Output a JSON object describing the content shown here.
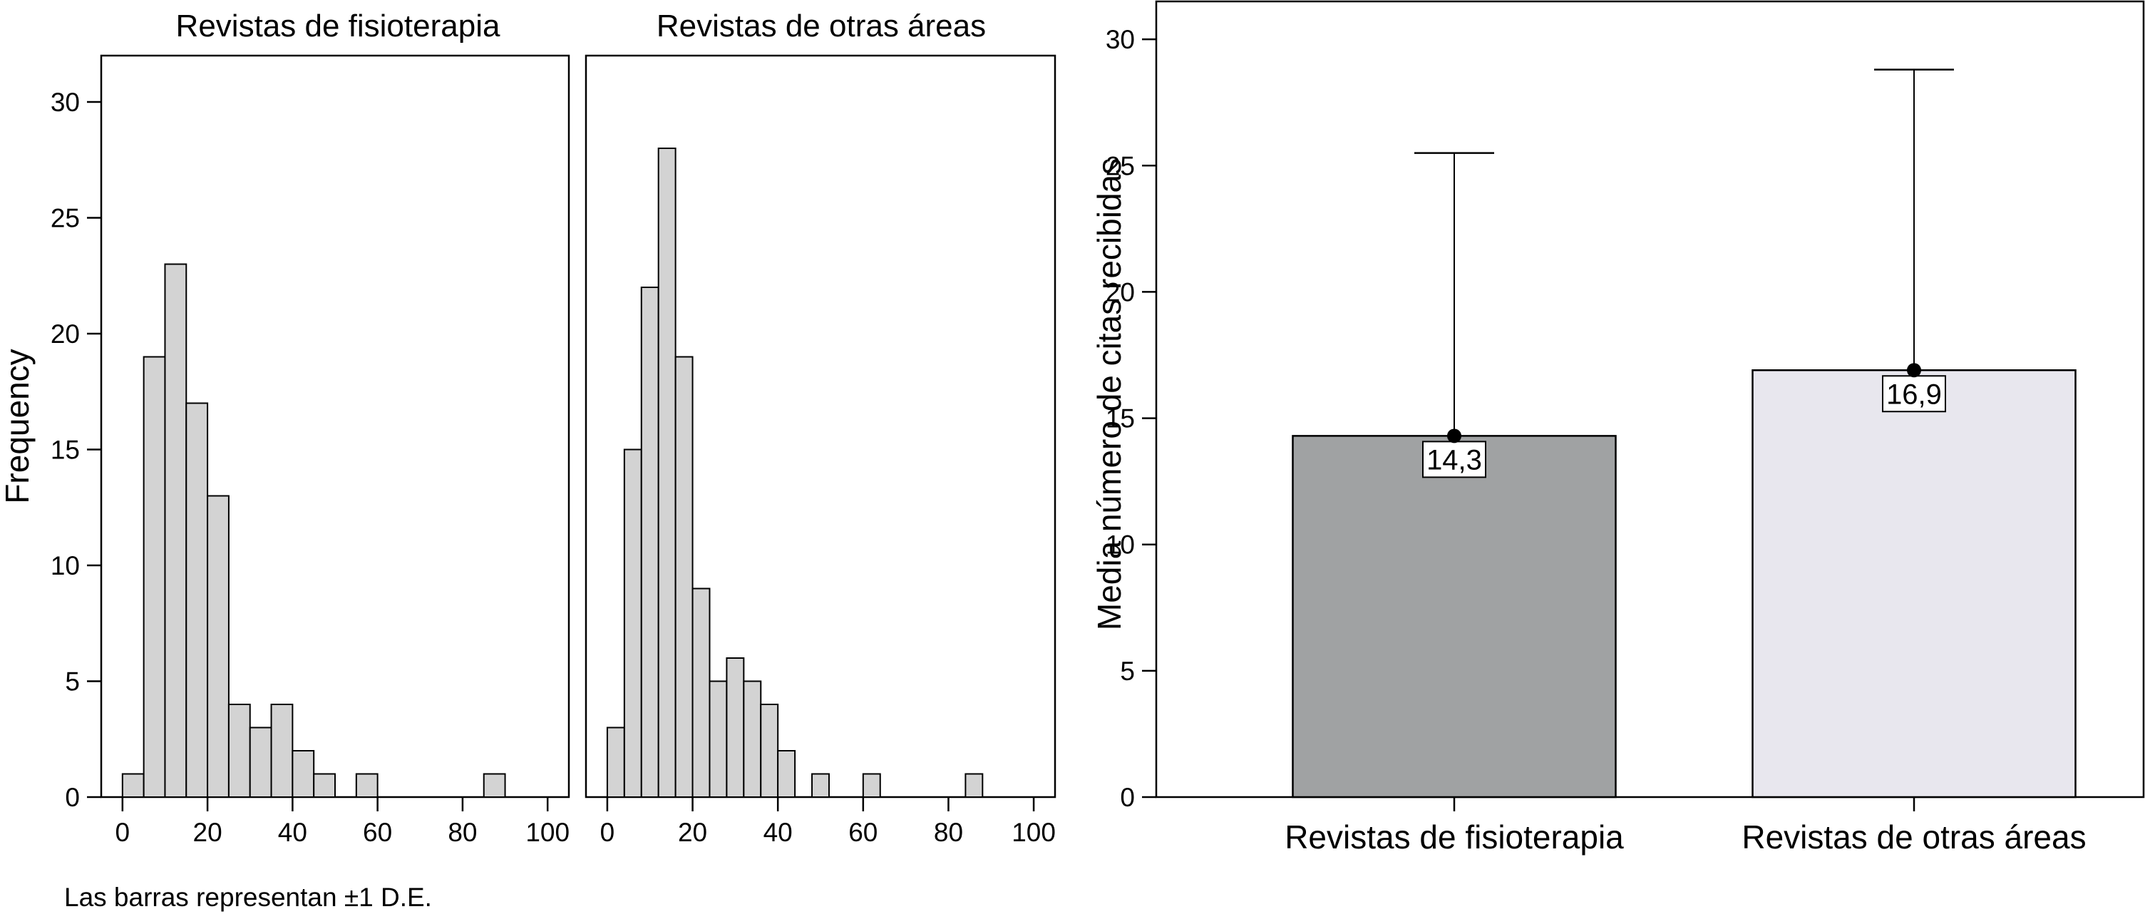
{
  "colors": {
    "hist_fill": "#d3d3d3",
    "bar_physio": "#a0a2a3",
    "bar_other": "#e8e7ee",
    "ink": "#000000"
  },
  "footnote": "Las barras representan ±1 D.E.",
  "chart_data": [
    {
      "type": "bar",
      "subtype": "histogram",
      "title": "Revistas de fisioterapia",
      "ylabel": "Frequency",
      "xlabel": "",
      "bin_width": 5,
      "bin_starts": [
        0,
        5,
        10,
        15,
        20,
        25,
        30,
        35,
        40,
        45,
        50,
        55,
        60,
        65,
        70,
        75,
        80,
        85
      ],
      "values": [
        1,
        19,
        23,
        17,
        13,
        4,
        3,
        4,
        2,
        1,
        0,
        1,
        0,
        0,
        0,
        0,
        0,
        1
      ],
      "xlim": [
        -5,
        105
      ],
      "ylim": [
        0,
        32
      ],
      "xticks": [
        0,
        20,
        40,
        60,
        80,
        100
      ],
      "yticks": [
        0,
        5,
        10,
        15,
        20,
        25,
        30
      ],
      "grid": false
    },
    {
      "type": "bar",
      "subtype": "histogram",
      "title": "Revistas de otras áreas",
      "xlabel": "",
      "bin_width": 4,
      "bin_starts": [
        0,
        4,
        8,
        12,
        16,
        20,
        24,
        28,
        32,
        36,
        40,
        44,
        48,
        52,
        56,
        60,
        64,
        68,
        72,
        76,
        80,
        84
      ],
      "values": [
        3,
        15,
        22,
        28,
        19,
        9,
        5,
        6,
        5,
        4,
        2,
        0,
        1,
        0,
        0,
        1,
        0,
        0,
        0,
        0,
        0,
        1
      ],
      "xlim": [
        -5,
        105
      ],
      "ylim": [
        0,
        32
      ],
      "xticks": [
        0,
        20,
        40,
        60,
        80,
        100
      ],
      "yticks": [
        0,
        5,
        10,
        15,
        20,
        25,
        30
      ],
      "grid": false
    },
    {
      "type": "bar",
      "title": "",
      "ylabel": "Media número de citas recibidas",
      "xlabel": "",
      "categories": [
        "Revistas de fisioterapia",
        "Revistas de otras áreas"
      ],
      "values": [
        14.3,
        16.9
      ],
      "value_labels": [
        "14,3",
        "16,9"
      ],
      "error_upper": [
        25.5,
        28.8
      ],
      "ylim": [
        0,
        31.5
      ],
      "yticks": [
        0,
        5,
        10,
        15,
        20,
        25,
        30
      ],
      "grid": false
    }
  ]
}
